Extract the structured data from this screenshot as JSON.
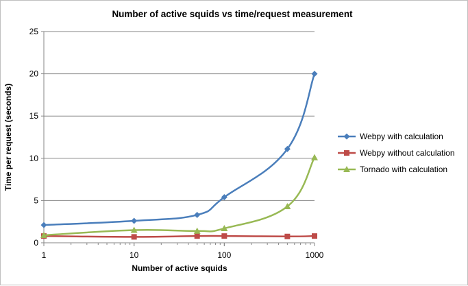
{
  "chart_data": {
    "type": "line",
    "title": "Number of active squids vs time/request measurement",
    "xlabel": "Number of active squids",
    "ylabel": "Time per request (seconds)",
    "x_scale": "log",
    "xlim": [
      1,
      1000
    ],
    "ylim": [
      0,
      25
    ],
    "x_ticks": [
      1,
      10,
      100,
      1000
    ],
    "y_ticks": [
      0,
      5,
      10,
      15,
      20,
      25
    ],
    "grid": "horizontal",
    "legend_position": "right",
    "x": [
      1,
      10,
      50,
      100,
      500,
      1000
    ],
    "series": [
      {
        "name": "Webpy with calculation",
        "color": "#4a7ebb",
        "marker": "diamond",
        "values": [
          2.1,
          2.6,
          3.3,
          5.4,
          11.1,
          20.0
        ]
      },
      {
        "name": "Webpy without calculation",
        "color": "#be4b48",
        "marker": "square",
        "values": [
          0.8,
          0.7,
          0.8,
          0.8,
          0.75,
          0.8
        ]
      },
      {
        "name": "Tornado with calculation",
        "color": "#98b954",
        "marker": "triangle",
        "values": [
          0.9,
          1.5,
          1.4,
          1.7,
          4.3,
          10.1
        ]
      }
    ]
  }
}
